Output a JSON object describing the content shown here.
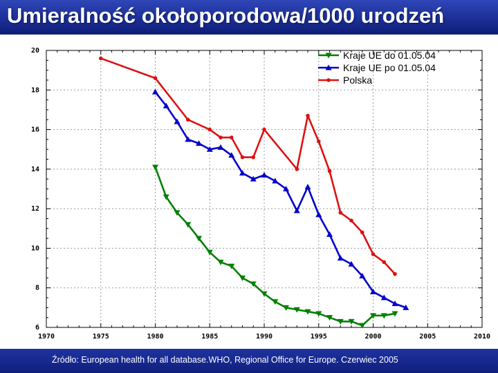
{
  "page": {
    "title": "Umieralność okołoporodowa/1000 urodzeń",
    "source": "Źródło: European health for all database.WHO, Regional Office for Europe. Czerwiec 2005"
  },
  "colors": {
    "header_bg": "#1c2f96",
    "footer_bg": "#0f1f7d",
    "grid": "#999999"
  },
  "chart_data": {
    "type": "line",
    "title": "Umieralność okołoporodowa/1000 urodzeń",
    "xlabel": "",
    "ylabel": "",
    "xlim": [
      1970,
      2010
    ],
    "ylim": [
      6,
      20
    ],
    "x_ticks": [
      "1970",
      "1975",
      "1980",
      "1985",
      "1990",
      "1995",
      "2000",
      "2005",
      "2010"
    ],
    "y_ticks": [
      "6",
      "8",
      "10",
      "12",
      "14",
      "16",
      "18",
      "20"
    ],
    "grid": true,
    "legend_position": "top-right",
    "series": [
      {
        "name": "Kraje UE do 01.05.04",
        "color": "#008000",
        "marker": "triangle-down",
        "x": [
          1980,
          1981,
          1982,
          1983,
          1984,
          1985,
          1986,
          1987,
          1988,
          1989,
          1990,
          1991,
          1992,
          1993,
          1994,
          1995,
          1996,
          1997,
          1998,
          1999,
          2000,
          2001,
          2002
        ],
        "y": [
          14.1,
          12.6,
          11.8,
          11.2,
          10.5,
          9.8,
          9.3,
          9.1,
          8.5,
          8.2,
          7.7,
          7.3,
          7.0,
          6.9,
          6.8,
          6.7,
          6.5,
          6.3,
          6.3,
          6.1,
          6.6,
          6.6,
          6.7
        ]
      },
      {
        "name": "Kraje UE po 01.05.04",
        "color": "#0000cc",
        "marker": "triangle-up",
        "x": [
          1980,
          1981,
          1982,
          1983,
          1984,
          1985,
          1986,
          1987,
          1988,
          1989,
          1990,
          1991,
          1992,
          1993,
          1994,
          1995,
          1996,
          1997,
          1998,
          1999,
          2000,
          2001,
          2002,
          2003
        ],
        "y": [
          17.9,
          17.2,
          16.4,
          15.5,
          15.3,
          15.0,
          15.1,
          14.7,
          13.8,
          13.5,
          13.7,
          13.4,
          13.0,
          11.9,
          13.1,
          11.7,
          10.7,
          9.5,
          9.2,
          8.6,
          7.8,
          7.5,
          7.2,
          7.0
        ]
      },
      {
        "name": "Polska",
        "color": "#dd1111",
        "marker": "circle",
        "x": [
          1975,
          1980,
          1983,
          1985,
          1986,
          1987,
          1988,
          1989,
          1990,
          1993,
          1994,
          1995,
          1996,
          1997,
          1998,
          1999,
          2000,
          2001,
          2002
        ],
        "y": [
          19.6,
          18.6,
          16.5,
          16.0,
          15.6,
          15.6,
          14.6,
          14.6,
          16.0,
          14.0,
          16.7,
          15.4,
          13.9,
          11.8,
          11.4,
          10.8,
          9.7,
          9.3,
          8.7
        ]
      }
    ]
  }
}
